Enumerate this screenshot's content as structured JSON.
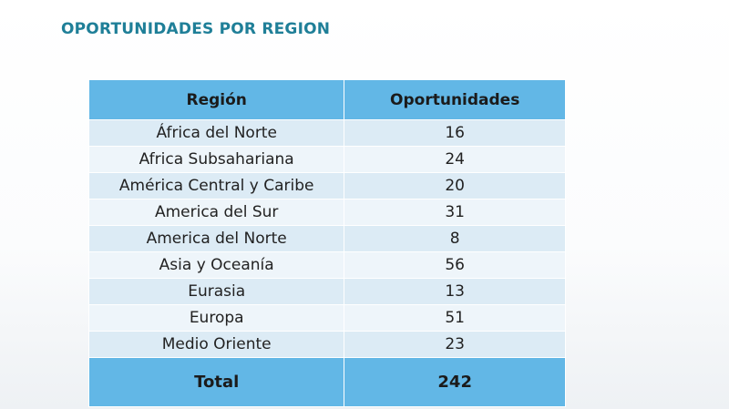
{
  "title": "OPORTUNIDADES POR REGION",
  "table": {
    "headers": [
      "Región",
      "Oportunidades"
    ],
    "rows": [
      [
        "África del Norte",
        "16"
      ],
      [
        "Africa Subsahariana",
        "24"
      ],
      [
        "América Central y Caribe",
        "20"
      ],
      [
        "America del Sur",
        "31"
      ],
      [
        "America del Norte",
        "8"
      ],
      [
        "Asia y Oceanía",
        "56"
      ],
      [
        "Eurasia",
        "13"
      ],
      [
        "Europa",
        "51"
      ],
      [
        "Medio Oriente",
        "23"
      ]
    ],
    "total": [
      "Total",
      "242"
    ]
  },
  "colors": {
    "title": "#1f7f98",
    "header_bg": "#62b7e6",
    "row_odd": "#dcebf5",
    "row_even": "#eef5fa"
  }
}
